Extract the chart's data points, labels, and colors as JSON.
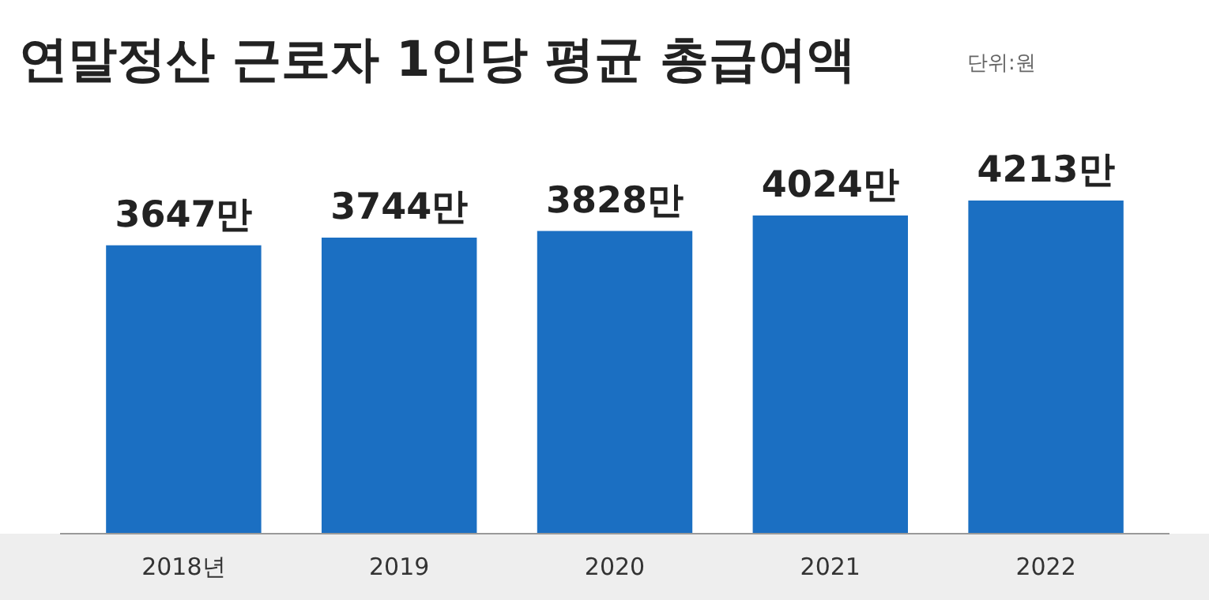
{
  "chart_data": {
    "type": "bar",
    "title": "연말정산 근로자 1인당 평균 총급여액",
    "annotations": [
      "단위:원"
    ],
    "categories": [
      "2018년",
      "2019",
      "2020",
      "2021",
      "2022"
    ],
    "values": [
      3647,
      3744,
      3828,
      4024,
      4213
    ],
    "value_labels": [
      "3647만",
      "3744만",
      "3828만",
      "4024만",
      "4213만"
    ],
    "color": "#1b6fc2",
    "grid": false
  }
}
